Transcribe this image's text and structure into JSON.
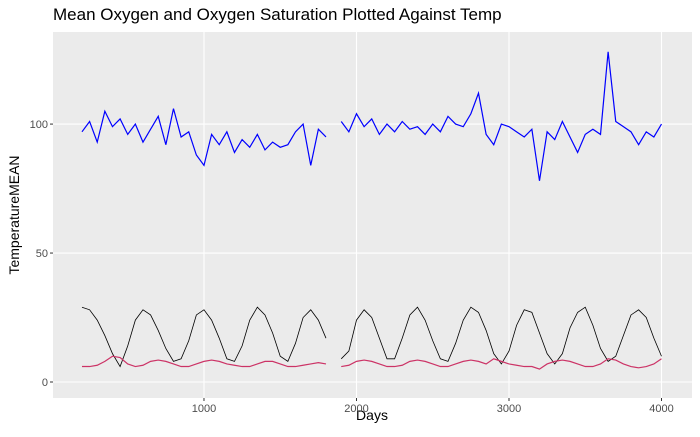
{
  "chart_data": {
    "type": "line",
    "title": "Mean Oxygen and Oxygen Saturation Plotted Against Temp",
    "x_label": "Days",
    "y_label": "TemperatureMEAN",
    "x": [
      200,
      250,
      300,
      350,
      400,
      450,
      500,
      550,
      600,
      650,
      700,
      750,
      800,
      850,
      900,
      950,
      1000,
      1050,
      1100,
      1150,
      1200,
      1250,
      1300,
      1350,
      1400,
      1450,
      1500,
      1550,
      1600,
      1650,
      1700,
      1750,
      1800,
      1850,
      1900,
      1950,
      2000,
      2050,
      2100,
      2150,
      2200,
      2250,
      2300,
      2350,
      2400,
      2450,
      2500,
      2550,
      2600,
      2650,
      2700,
      2750,
      2800,
      2850,
      2900,
      2950,
      3000,
      3050,
      3100,
      3150,
      3200,
      3250,
      3300,
      3350,
      3400,
      3450,
      3500,
      3550,
      3600,
      3650,
      3700,
      3750,
      3800,
      3850,
      3900,
      3950,
      4000
    ],
    "series": [
      {
        "name": "Mean Oxygen",
        "color": "#0000ff",
        "values": [
          97,
          101,
          93,
          105,
          99,
          102,
          96,
          100,
          93,
          98,
          103,
          92,
          106,
          95,
          97,
          88,
          84,
          96,
          92,
          97,
          89,
          94,
          91,
          96,
          90,
          93,
          91,
          92,
          97,
          100,
          84,
          98,
          95,
          null,
          101,
          97,
          104,
          99,
          102,
          96,
          100,
          97,
          101,
          98,
          99,
          96,
          100,
          97,
          103,
          100,
          99,
          104,
          112,
          96,
          92,
          100,
          99,
          97,
          95,
          98,
          78,
          97,
          94,
          101,
          95,
          89,
          96,
          98,
          96,
          128,
          101,
          99,
          97,
          92,
          97,
          95,
          100
        ]
      },
      {
        "name": "Temp",
        "color": "#000000",
        "values": [
          29,
          28,
          24,
          18,
          11,
          6,
          14,
          24,
          28,
          26,
          20,
          13,
          8,
          9,
          16,
          26,
          28,
          24,
          17,
          9,
          8,
          14,
          24,
          29,
          26,
          19,
          10,
          8,
          15,
          25,
          28,
          24,
          17,
          null,
          9,
          12,
          24,
          28,
          25,
          17,
          9,
          9,
          17,
          26,
          29,
          24,
          16,
          9,
          8,
          15,
          24,
          29,
          27,
          20,
          11,
          7,
          12,
          22,
          28,
          27,
          19,
          11,
          7,
          11,
          21,
          27,
          29,
          22,
          13,
          8,
          10,
          18,
          26,
          28,
          25,
          17,
          10
        ]
      },
      {
        "name": "Oxygen Saturation",
        "color": "#cc3366",
        "values": [
          6,
          6,
          6.5,
          8,
          10,
          9.5,
          7,
          6,
          6.5,
          8,
          8.5,
          8,
          7,
          6,
          6,
          7,
          8,
          8.5,
          8,
          7,
          6.5,
          6,
          6,
          7,
          8,
          8,
          7,
          6,
          6,
          6.5,
          7,
          7.5,
          7,
          null,
          6,
          6.5,
          8,
          8.5,
          8,
          7,
          6,
          6,
          6.5,
          8,
          8.5,
          8,
          7,
          6,
          6,
          7,
          8,
          8.5,
          8,
          7,
          9,
          8,
          7,
          6.5,
          6,
          6,
          5,
          7,
          8,
          8.5,
          8,
          7,
          6,
          6,
          7,
          9,
          8.5,
          7,
          6,
          5.5,
          6,
          7,
          9
        ]
      }
    ],
    "xlim": [
      10,
      4200
    ],
    "ylim": [
      -6.2,
      135.7
    ],
    "xticks": [
      1000,
      2000,
      3000,
      4000
    ],
    "yticks": [
      0,
      50,
      100
    ],
    "grid": true
  }
}
